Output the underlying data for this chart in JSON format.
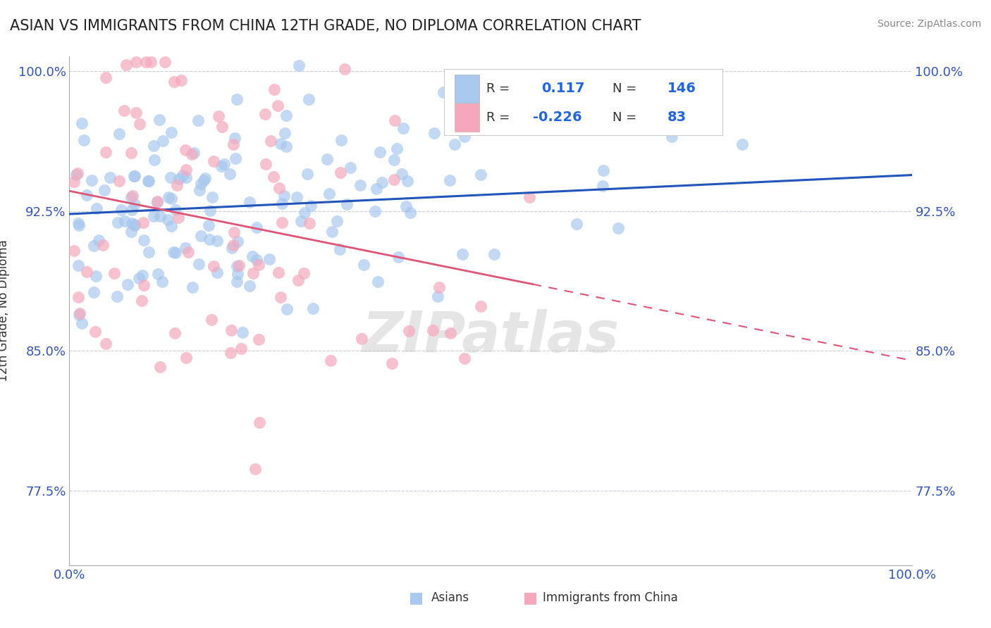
{
  "title": "ASIAN VS IMMIGRANTS FROM CHINA 12TH GRADE, NO DIPLOMA CORRELATION CHART",
  "source": "Source: ZipAtlas.com",
  "ylabel": "12th Grade, No Diploma",
  "xlim": [
    0.0,
    1.0
  ],
  "ylim": [
    0.735,
    1.008
  ],
  "yticks": [
    0.775,
    0.85,
    0.925,
    1.0
  ],
  "ytick_labels": [
    "77.5%",
    "85.0%",
    "92.5%",
    "100.0%"
  ],
  "xtick_labels": [
    "0.0%",
    "100.0%"
  ],
  "xticks": [
    0.0,
    1.0
  ],
  "blue_R": 0.117,
  "blue_N": 146,
  "pink_R": -0.226,
  "pink_N": 83,
  "blue_color": "#A8C8EE",
  "pink_color": "#F5A8BC",
  "blue_line_color": "#2255BB",
  "pink_line_color": "#E05575",
  "background_color": "#FFFFFF",
  "grid_color": "#CCCCDD",
  "title_color": "#222222",
  "axis_label_color": "#3355BB",
  "legend_R_color": "#2266DD",
  "watermark": "ZIPatlas",
  "legend_box_color": "#EEEEEE"
}
